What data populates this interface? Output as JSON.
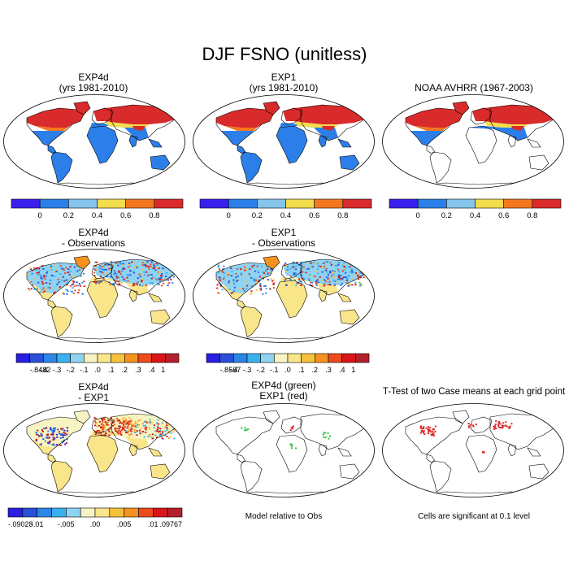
{
  "title": "DJF FSNO (unitless)",
  "colors": {
    "abs": [
      "#3a1fee",
      "#2c7fe8",
      "#86c5ec",
      "#f3dd4c",
      "#f3771f",
      "#d92b2b"
    ],
    "diff": [
      "#2a1ee0",
      "#2a4fd8",
      "#2c86e6",
      "#3ab0ef",
      "#8fd3f2",
      "#f7f4c4",
      "#f9e58a",
      "#f6c23c",
      "#f5921f",
      "#ec4c1c",
      "#d8161a",
      "#b31f2a"
    ],
    "ocean": "#ffffff",
    "land": "#ffffff",
    "coast": "#000000"
  },
  "panels": [
    {
      "id": "exp4d",
      "title_lines": [
        "EXP4d",
        "(yrs 1981-2010)"
      ],
      "colorbar": "abs",
      "ticks": [
        "0",
        "0.2",
        "0.4",
        "0.6",
        "0.8"
      ]
    },
    {
      "id": "exp1",
      "title_lines": [
        "EXP1",
        "(yrs 1981-2010)"
      ],
      "colorbar": "abs",
      "ticks": [
        "0",
        "0.2",
        "0.4",
        "0.6",
        "0.8"
      ]
    },
    {
      "id": "noaa",
      "title_lines": [
        "NOAA AVHRR (1967-2003)"
      ],
      "colorbar": "abs",
      "ticks": [
        "0",
        "0.2",
        "0.4",
        "0.6",
        "0.8"
      ]
    },
    {
      "id": "exp4d-obs",
      "title_lines": [
        "EXP4d",
        "- Observations"
      ],
      "colorbar": "diff",
      "ticks": [
        "-.8482",
        "-.4",
        "-.3",
        "-.2",
        "-.1",
        ".0",
        ".1",
        ".2",
        ".3",
        ".4",
        "1"
      ]
    },
    {
      "id": "exp1-obs",
      "title_lines": [
        "EXP1",
        "- Observations"
      ],
      "colorbar": "diff",
      "ticks": [
        "-.8567",
        "-.4",
        "-.3",
        "-.2",
        "-.1",
        ".0",
        ".1",
        ".2",
        ".3",
        ".4",
        "1"
      ]
    },
    {
      "id": "exp4d-exp1",
      "title_lines": [
        "EXP4d",
        "- EXP1"
      ],
      "colorbar": "diff",
      "ticks": [
        "-.09028",
        "-.01",
        "-.005",
        ".00",
        ".005",
        ".01",
        ".09767"
      ]
    },
    {
      "id": "green-red",
      "title_lines": [
        "EXP4d (green)",
        "EXP1 (red)"
      ],
      "colorbar": "none",
      "note": "Model relative to Obs"
    },
    {
      "id": "ttest",
      "title_lines": [
        "T-Test of two Case means at each grid point"
      ],
      "colorbar": "none",
      "note": "Cells are significant at 0.1 level"
    }
  ]
}
